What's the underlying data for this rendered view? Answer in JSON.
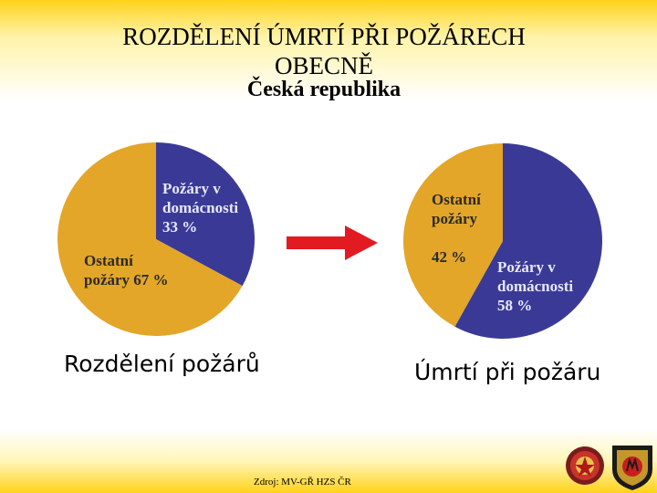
{
  "title": {
    "line1": "ROZDĚLENÍ ÚMRTÍ PŘI POŽÁRECH",
    "line2": "OBECNĚ",
    "subtitle": "Česká republika"
  },
  "colors": {
    "home_fires": "#3a3a96",
    "other_fires": "#e3a628",
    "arrow": "#e21a22",
    "label_home": "#e8e8ff",
    "label_other": "#2a2a2a"
  },
  "chart_data": [
    {
      "type": "pie",
      "title": "Rozdělení požárů",
      "slices": [
        {
          "label_lines": [
            "Požáry v",
            "domácnosti",
            "33 %"
          ],
          "value": 33
        },
        {
          "label_lines": [
            "Ostatní",
            "požáry 67 %"
          ],
          "value": 67
        }
      ]
    },
    {
      "type": "pie",
      "title": "Úmrtí při  požáru",
      "slices": [
        {
          "label_lines": [
            "Požáry v",
            "domácnosti",
            "58 %"
          ],
          "value": 58
        },
        {
          "label_lines": [
            "Ostatní",
            "požáry",
            "",
            "42 %"
          ],
          "value": 42
        }
      ]
    }
  ],
  "source": "Zdroj: MV-GŘ HZS ČR",
  "logos": [
    "fire-rescue-emblem-icon",
    "fire-department-shield-icon"
  ]
}
